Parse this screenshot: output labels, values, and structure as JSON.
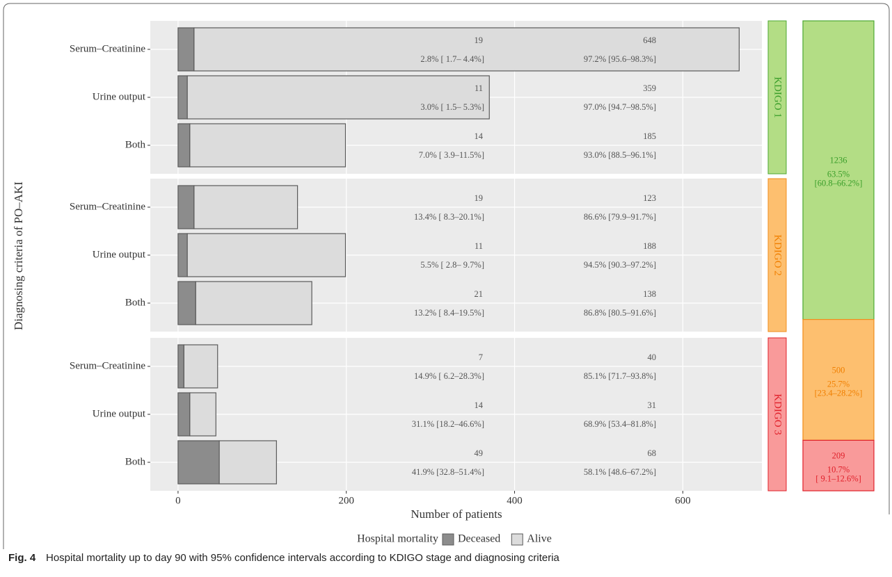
{
  "chart_data": {
    "type": "bar",
    "x_label": "Number of patients",
    "y_label": "Diagnosing criteria of PO–AKI",
    "xlim": [
      -33,
      694
    ],
    "xticks": [
      0,
      200,
      400,
      600
    ],
    "grid": true,
    "legend_title": "Hospital mortality",
    "legend": [
      {
        "name": "Deceased",
        "color": "#8c8c8c"
      },
      {
        "name": "Alive",
        "color": "#dcdcdc"
      }
    ],
    "panels": [
      {
        "strip": "KDIGO 1",
        "strip_color": "#b3dd85",
        "strip_edge": "#4ca832",
        "text_color": "#3a9e2a",
        "categories": [
          "Serum–Creatinine",
          "Urine output",
          "Both"
        ],
        "series": [
          {
            "name": "Deceased",
            "values": [
              19,
              11,
              14
            ]
          },
          {
            "name": "Alive",
            "values": [
              648,
              359,
              185
            ]
          }
        ],
        "deceased_labels": [
          "2.8% [ 1.7– 4.4%]",
          "3.0% [ 1.5– 5.3%]",
          "7.0% [ 3.9–11.5%]"
        ],
        "alive_labels": [
          "97.2% [95.6–98.3%]",
          "97.0% [94.7–98.5%]",
          "93.0% [88.5–96.1%]"
        ]
      },
      {
        "strip": "KDIGO 2",
        "strip_color": "#fdbf6f",
        "strip_edge": "#f08c1c",
        "text_color": "#f07f00",
        "categories": [
          "Serum–Creatinine",
          "Urine output",
          "Both"
        ],
        "series": [
          {
            "name": "Deceased",
            "values": [
              19,
              11,
              21
            ]
          },
          {
            "name": "Alive",
            "values": [
              123,
              188,
              138
            ]
          }
        ],
        "deceased_labels": [
          "13.4% [ 8.3–20.1%]",
          "5.5% [ 2.8– 9.7%]",
          "13.2% [ 8.4–19.5%]"
        ],
        "alive_labels": [
          "86.6% [79.9–91.7%]",
          "94.5% [90.3–97.2%]",
          "86.8% [80.5–91.6%]"
        ]
      },
      {
        "strip": "KDIGO 3",
        "strip_color": "#f99a9a",
        "strip_edge": "#e0202a",
        "text_color": "#e0202a",
        "categories": [
          "Serum–Creatinine",
          "Urine output",
          "Both"
        ],
        "series": [
          {
            "name": "Deceased",
            "values": [
              7,
              14,
              49
            ]
          },
          {
            "name": "Alive",
            "values": [
              40,
              31,
              68
            ]
          }
        ],
        "deceased_labels": [
          "14.9% [ 6.2–28.3%]",
          "31.1% [18.2–46.6%]",
          "41.9% [32.8–51.4%]"
        ],
        "alive_labels": [
          "85.1% [71.7–93.8%]",
          "68.9% [53.4–81.8%]",
          "58.1% [48.6–67.2%]"
        ]
      }
    ],
    "summary": {
      "values": [
        1236,
        500,
        209
      ],
      "pct_labels": [
        "63.5%",
        "25.7%",
        "10.7%"
      ],
      "ci_labels": [
        "[60.8–66.2%]",
        "[23.4–28.2%]",
        "[ 9.1–12.6%]"
      ]
    },
    "caption_label": "Fig. 4",
    "caption": "Hospital mortality up to day 90 with 95% confidence intervals according to KDIGO stage and diagnosing criteria"
  }
}
